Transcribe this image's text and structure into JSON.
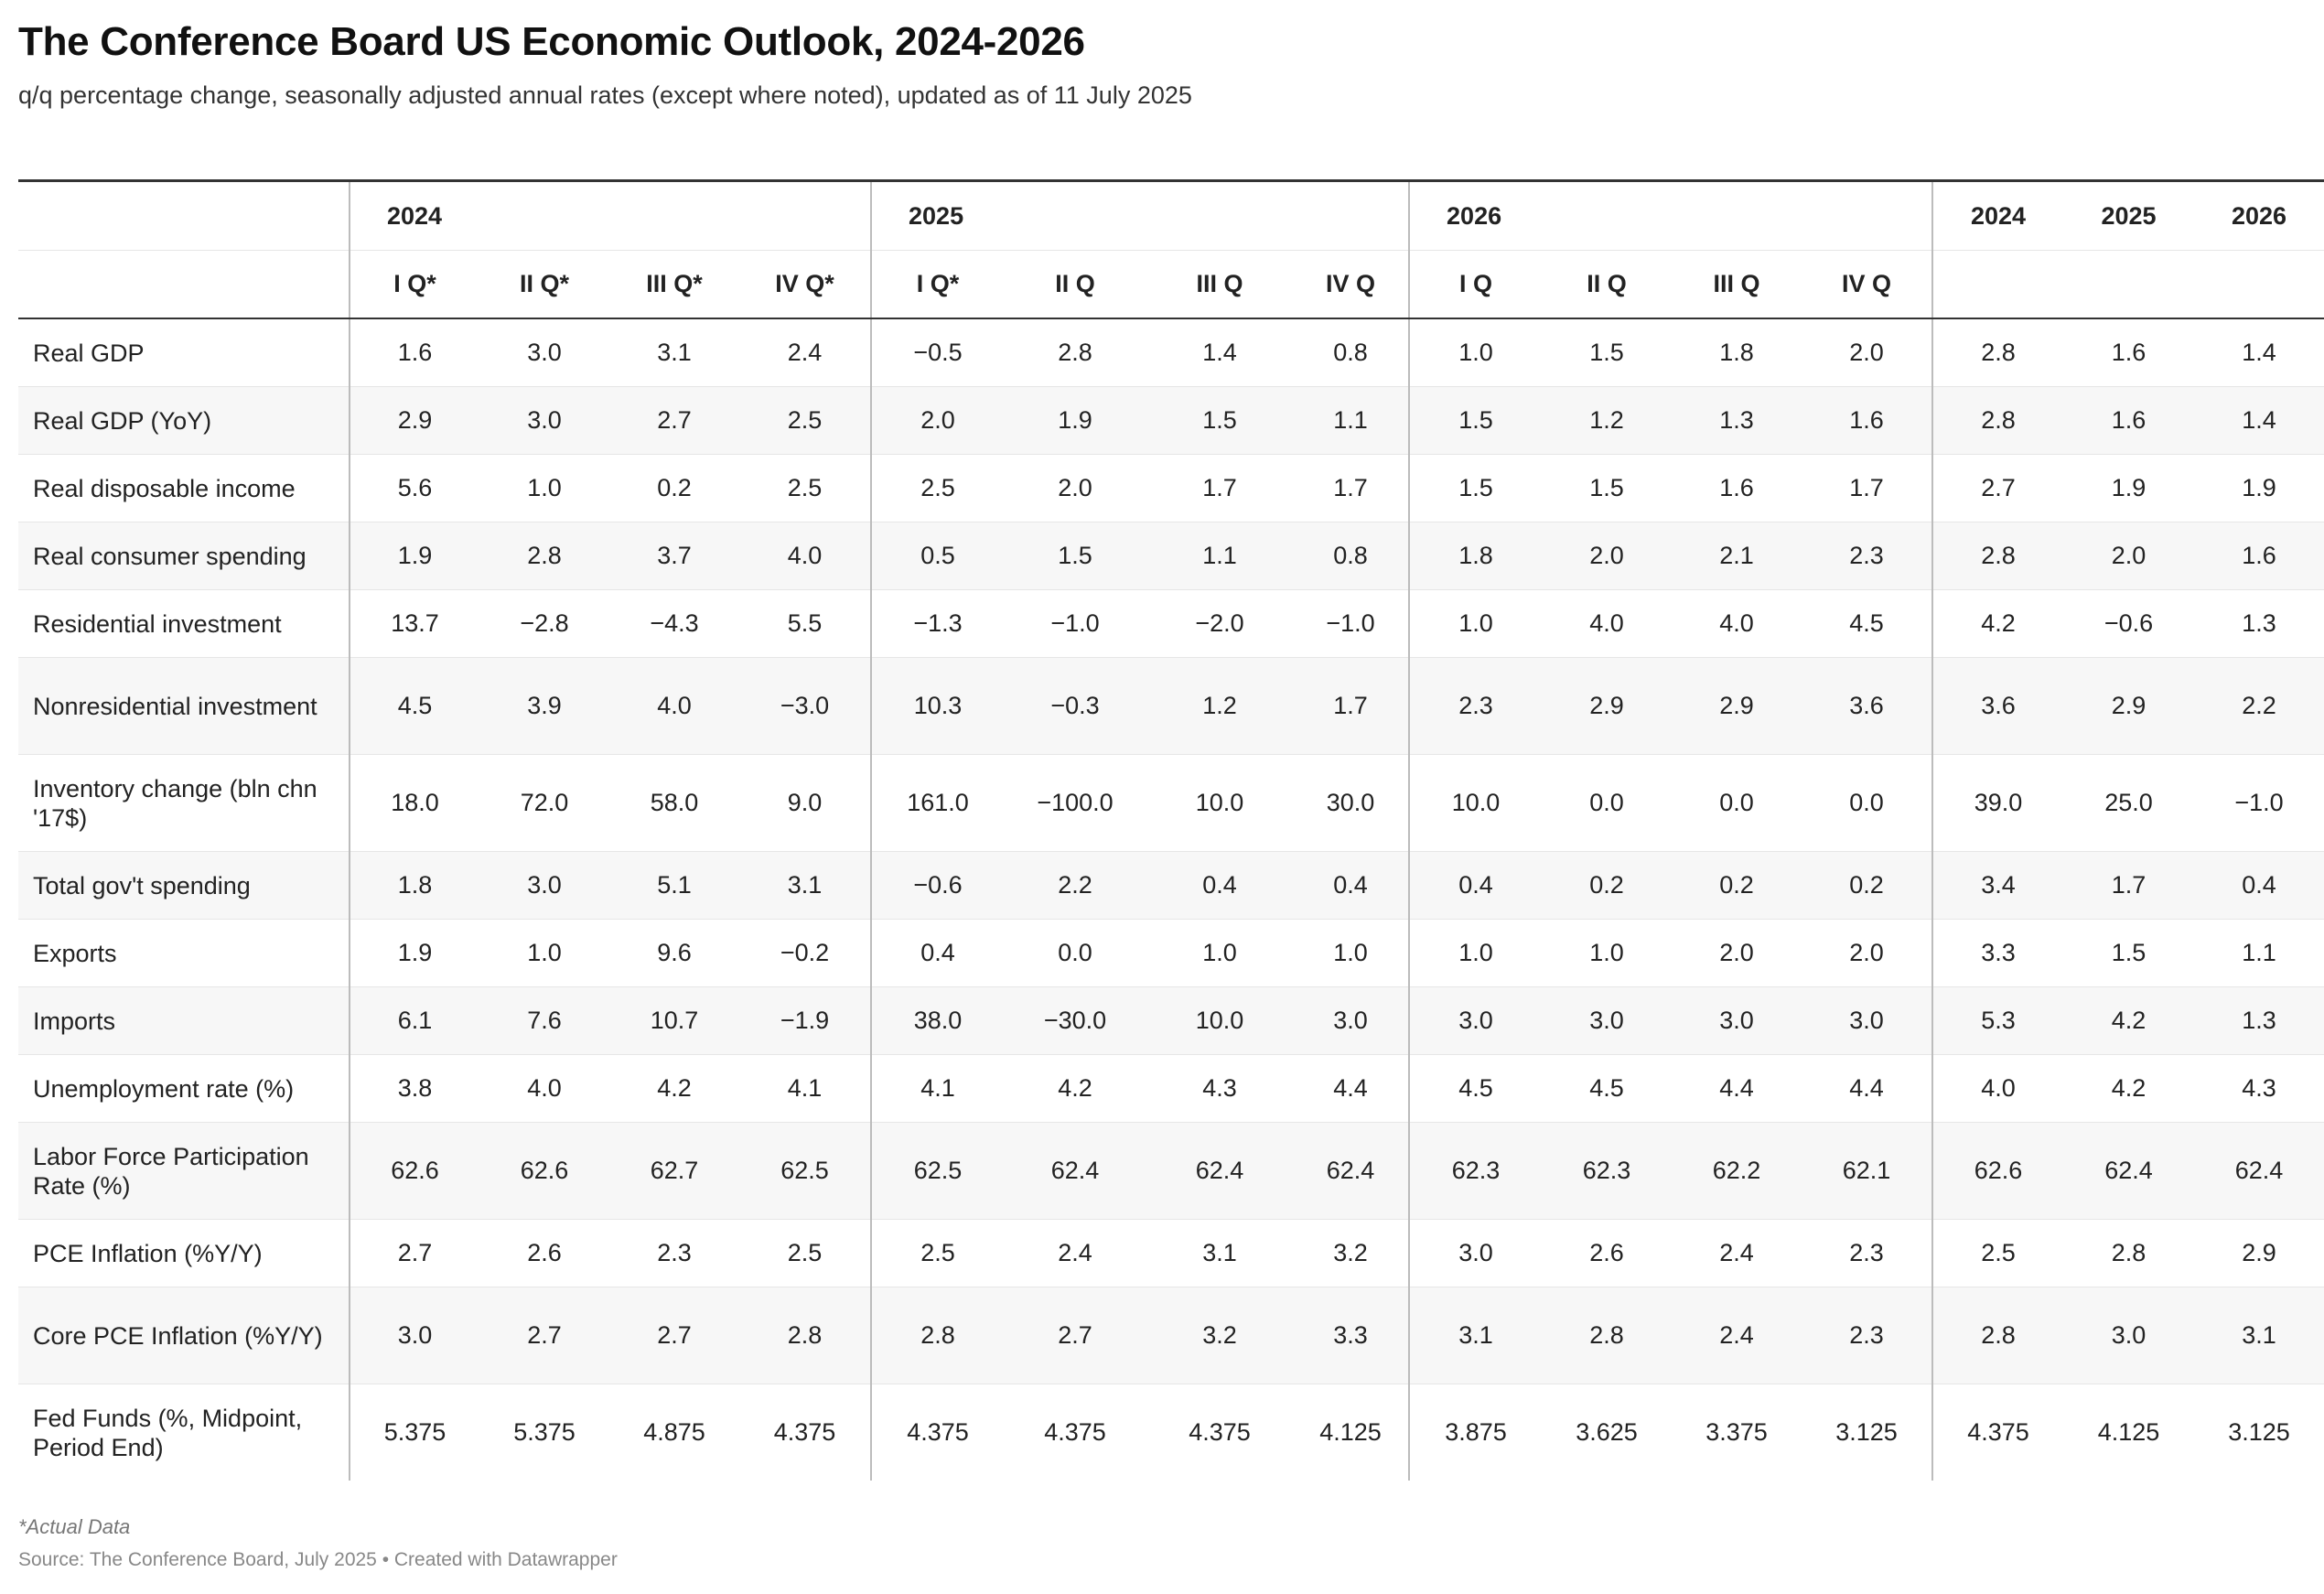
{
  "header": {
    "title": "The Conference Board US Economic Outlook, 2024-2026",
    "subtitle": "q/q percentage change, seasonally adjusted annual rates (except where noted), updated as of 11 July 2025"
  },
  "footer": {
    "note": "*Actual Data",
    "source": "Source: The Conference Board, July 2025 • Created with Datawrapper"
  },
  "chart_data": {
    "type": "table",
    "title": "The Conference Board US Economic Outlook, 2024-2026",
    "group_headers": [
      "",
      "2024",
      "2025",
      "2026",
      "2024",
      "2025",
      "2026"
    ],
    "columns": [
      "",
      "I Q*",
      "II Q*",
      "III Q*",
      "IV Q*",
      "I Q*",
      "II Q",
      "III Q",
      "IV Q",
      "I Q",
      "II Q",
      "III Q",
      "IV Q",
      "",
      "",
      ""
    ],
    "rows": [
      {
        "label": "Real GDP",
        "values": [
          "1.6",
          "3.0",
          "3.1",
          "2.4",
          "−0.5",
          "2.8",
          "1.4",
          "0.8",
          "1.0",
          "1.5",
          "1.8",
          "2.0",
          "2.8",
          "1.6",
          "1.4"
        ]
      },
      {
        "label": "Real GDP (YoY)",
        "values": [
          "2.9",
          "3.0",
          "2.7",
          "2.5",
          "2.0",
          "1.9",
          "1.5",
          "1.1",
          "1.5",
          "1.2",
          "1.3",
          "1.6",
          "2.8",
          "1.6",
          "1.4"
        ]
      },
      {
        "label": "Real disposable income",
        "values": [
          "5.6",
          "1.0",
          "0.2",
          "2.5",
          "2.5",
          "2.0",
          "1.7",
          "1.7",
          "1.5",
          "1.5",
          "1.6",
          "1.7",
          "2.7",
          "1.9",
          "1.9"
        ]
      },
      {
        "label": "Real consumer spending",
        "values": [
          "1.9",
          "2.8",
          "3.7",
          "4.0",
          "0.5",
          "1.5",
          "1.1",
          "0.8",
          "1.8",
          "2.0",
          "2.1",
          "2.3",
          "2.8",
          "2.0",
          "1.6"
        ]
      },
      {
        "label": "Residential investment",
        "values": [
          "13.7",
          "−2.8",
          "−4.3",
          "5.5",
          "−1.3",
          "−1.0",
          "−2.0",
          "−1.0",
          "1.0",
          "4.0",
          "4.0",
          "4.5",
          "4.2",
          "−0.6",
          "1.3"
        ]
      },
      {
        "label": "Nonresidential investment",
        "values": [
          "4.5",
          "3.9",
          "4.0",
          "−3.0",
          "10.3",
          "−0.3",
          "1.2",
          "1.7",
          "2.3",
          "2.9",
          "2.9",
          "3.6",
          "3.6",
          "2.9",
          "2.2"
        ]
      },
      {
        "label": "Inventory change (bln chn '17$)",
        "values": [
          "18.0",
          "72.0",
          "58.0",
          "9.0",
          "161.0",
          "−100.0",
          "10.0",
          "30.0",
          "10.0",
          "0.0",
          "0.0",
          "0.0",
          "39.0",
          "25.0",
          "−1.0"
        ]
      },
      {
        "label": "Total gov't spending",
        "values": [
          "1.8",
          "3.0",
          "5.1",
          "3.1",
          "−0.6",
          "2.2",
          "0.4",
          "0.4",
          "0.4",
          "0.2",
          "0.2",
          "0.2",
          "3.4",
          "1.7",
          "0.4"
        ]
      },
      {
        "label": "Exports",
        "values": [
          "1.9",
          "1.0",
          "9.6",
          "−0.2",
          "0.4",
          "0.0",
          "1.0",
          "1.0",
          "1.0",
          "1.0",
          "2.0",
          "2.0",
          "3.3",
          "1.5",
          "1.1"
        ]
      },
      {
        "label": "Imports",
        "values": [
          "6.1",
          "7.6",
          "10.7",
          "−1.9",
          "38.0",
          "−30.0",
          "10.0",
          "3.0",
          "3.0",
          "3.0",
          "3.0",
          "3.0",
          "5.3",
          "4.2",
          "1.3"
        ]
      },
      {
        "label": "Unemployment rate (%)",
        "values": [
          "3.8",
          "4.0",
          "4.2",
          "4.1",
          "4.1",
          "4.2",
          "4.3",
          "4.4",
          "4.5",
          "4.5",
          "4.4",
          "4.4",
          "4.0",
          "4.2",
          "4.3"
        ]
      },
      {
        "label": "Labor Force Participation Rate (%)",
        "values": [
          "62.6",
          "62.6",
          "62.7",
          "62.5",
          "62.5",
          "62.4",
          "62.4",
          "62.4",
          "62.3",
          "62.3",
          "62.2",
          "62.1",
          "62.6",
          "62.4",
          "62.4"
        ]
      },
      {
        "label": "PCE Inflation (%Y/Y)",
        "values": [
          "2.7",
          "2.6",
          "2.3",
          "2.5",
          "2.5",
          "2.4",
          "3.1",
          "3.2",
          "3.0",
          "2.6",
          "2.4",
          "2.3",
          "2.5",
          "2.8",
          "2.9"
        ]
      },
      {
        "label": "Core PCE Inflation (%Y/Y)",
        "values": [
          "3.0",
          "2.7",
          "2.7",
          "2.8",
          "2.8",
          "2.7",
          "3.2",
          "3.3",
          "3.1",
          "2.8",
          "2.4",
          "2.3",
          "2.8",
          "3.0",
          "3.1"
        ]
      },
      {
        "label": "Fed Funds (%, Midpoint, Period End)",
        "values": [
          "5.375",
          "5.375",
          "4.875",
          "4.375",
          "4.375",
          "4.375",
          "4.375",
          "4.125",
          "3.875",
          "3.625",
          "3.375",
          "3.125",
          "4.375",
          "4.125",
          "3.125"
        ]
      }
    ]
  }
}
